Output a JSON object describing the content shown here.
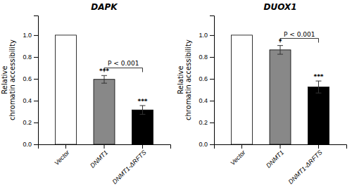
{
  "chart_data": [
    {
      "type": "bar",
      "title": "DAPK",
      "categories": [
        "Vector",
        "DNMT1",
        "DNMT1-ΔRFTS"
      ],
      "values": [
        1.0,
        0.595,
        0.315
      ],
      "errors": [
        0.0,
        0.035,
        0.04
      ],
      "colors": [
        "white",
        "#888888",
        "black"
      ],
      "significance": [
        null,
        "***",
        "***"
      ],
      "bracket": {
        "from": "DNMT1",
        "to": "DNMT1-ΔRFTS",
        "y": 0.7,
        "label": "P < 0.001"
      },
      "ylabel": "Relative\nchromatin accessibility",
      "ylim": [
        0,
        1.18
      ],
      "yticks": [
        {
          "value": 0.0,
          "label": "0.0"
        },
        0.2,
        0.4,
        0.6,
        0.8,
        {
          "value": 1.0,
          "label": "1.0"
        }
      ]
    },
    {
      "type": "bar",
      "title": "DUOX1",
      "categories": [
        "Vector",
        "DNMT1",
        "DNMT1-ΔRFTS"
      ],
      "values": [
        1.0,
        0.865,
        0.525
      ],
      "errors": [
        0.0,
        0.04,
        0.055
      ],
      "colors": [
        "white",
        "#888888",
        "black"
      ],
      "significance": [
        null,
        "*",
        "***"
      ],
      "bracket": {
        "from": "DNMT1",
        "to": "DNMT1-ΔRFTS",
        "y": 0.97,
        "label": "P < 0.001"
      },
      "ylabel": "Relative\nchromatin accessibility",
      "ylim": [
        0,
        1.18
      ],
      "yticks": [
        {
          "value": 0.0,
          "label": "0.0"
        },
        0.2,
        0.4,
        0.6,
        0.8,
        {
          "value": 1.0,
          "label": "1.0"
        }
      ]
    }
  ]
}
